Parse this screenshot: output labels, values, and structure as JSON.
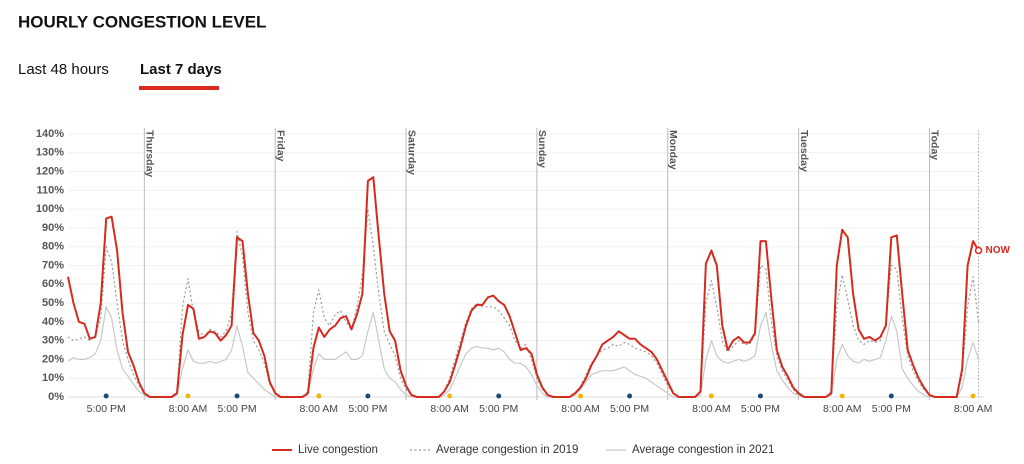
{
  "page": {
    "title": "HOURLY CONGESTION LEVEL",
    "tabs": [
      {
        "label": "Last 48 hours",
        "active": false
      },
      {
        "label": "Last 7 days",
        "active": true
      }
    ]
  },
  "chart_data": {
    "type": "line",
    "xlim": [
      0,
      168
    ],
    "xticks": [
      {
        "value": 7,
        "label": "5:00 PM",
        "dot": "#1d4a73"
      },
      {
        "value": 22,
        "label": "8:00 AM",
        "dot": "#f2b705"
      },
      {
        "value": 31,
        "label": "5:00 PM",
        "dot": "#1d4a73"
      },
      {
        "value": 46,
        "label": "8:00 AM",
        "dot": "#f2b705"
      },
      {
        "value": 55,
        "label": "5:00 PM",
        "dot": "#1d4a73"
      },
      {
        "value": 70,
        "label": "8:00 AM",
        "dot": "#f2b705"
      },
      {
        "value": 79,
        "label": "5:00 PM",
        "dot": "#1d4a73"
      },
      {
        "value": 94,
        "label": "8:00 AM",
        "dot": "#f2b705"
      },
      {
        "value": 103,
        "label": "5:00 PM",
        "dot": "#1d4a73"
      },
      {
        "value": 118,
        "label": "8:00 AM",
        "dot": "#f2b705"
      },
      {
        "value": 127,
        "label": "5:00 PM",
        "dot": "#1d4a73"
      },
      {
        "value": 142,
        "label": "8:00 AM",
        "dot": "#f2b705"
      },
      {
        "value": 151,
        "label": "5:00 PM",
        "dot": "#1d4a73"
      },
      {
        "value": 166,
        "label": "8:00 AM",
        "dot": "#f2b705"
      }
    ],
    "day_markers": [
      {
        "value": 14,
        "label": "Thursday"
      },
      {
        "value": 38,
        "label": "Friday"
      },
      {
        "value": 62,
        "label": "Saturday"
      },
      {
        "value": 86,
        "label": "Sunday"
      },
      {
        "value": 110,
        "label": "Monday"
      },
      {
        "value": 134,
        "label": "Tuesday"
      },
      {
        "value": 158,
        "label": "Today"
      }
    ],
    "ylim": [
      0,
      140
    ],
    "yticks": [
      {
        "value": 0,
        "label": "0%"
      },
      {
        "value": 10,
        "label": "10%"
      },
      {
        "value": 20,
        "label": "20%"
      },
      {
        "value": 30,
        "label": "30%"
      },
      {
        "value": 40,
        "label": "40%"
      },
      {
        "value": 50,
        "label": "50%"
      },
      {
        "value": 60,
        "label": "60%"
      },
      {
        "value": 70,
        "label": "70%"
      },
      {
        "value": 80,
        "label": "80%"
      },
      {
        "value": 90,
        "label": "90%"
      },
      {
        "value": 100,
        "label": "100%"
      },
      {
        "value": 110,
        "label": "110%"
      },
      {
        "value": 120,
        "label": "120%"
      },
      {
        "value": 130,
        "label": "130%"
      },
      {
        "value": 140,
        "label": "140%"
      }
    ],
    "grid": true,
    "annotation": {
      "label": "NOW",
      "color": "#d42b1e"
    },
    "series": [
      {
        "name": "Average congestion in 2021",
        "color": "#c8c8c8",
        "line_style": "solid",
        "values": [
          19,
          21,
          20,
          20,
          21,
          23,
          30,
          48,
          42,
          25,
          15,
          11,
          7,
          3,
          1,
          0,
          0,
          0,
          0,
          0,
          1,
          15,
          25,
          19,
          18,
          18,
          19,
          18,
          19,
          20,
          25,
          38,
          27,
          13,
          10,
          7,
          4,
          2,
          0,
          0,
          0,
          0,
          0,
          0,
          1,
          15,
          23,
          20,
          20,
          20,
          22,
          24,
          20,
          20,
          22,
          35,
          45,
          30,
          15,
          10,
          8,
          4,
          1,
          0,
          0,
          0,
          0,
          0,
          0,
          1,
          4,
          10,
          17,
          23,
          26,
          27,
          26,
          26,
          25,
          26,
          24,
          20,
          18,
          18,
          16,
          12,
          6,
          2,
          0,
          0,
          0,
          0,
          0,
          1,
          4,
          8,
          12,
          13,
          14,
          14,
          14,
          15,
          16,
          14,
          12,
          11,
          10,
          8,
          6,
          4,
          2,
          0,
          0,
          0,
          0,
          0,
          1,
          20,
          30,
          22,
          19,
          18,
          19,
          20,
          19,
          20,
          22,
          38,
          45,
          28,
          14,
          9,
          5,
          2,
          1,
          0,
          0,
          0,
          0,
          0,
          1,
          20,
          28,
          22,
          19,
          18,
          20,
          19,
          20,
          21,
          30,
          43,
          35,
          15,
          10,
          6,
          3,
          1,
          0,
          0,
          0,
          0,
          0,
          0,
          5,
          20,
          29,
          20
        ]
      },
      {
        "name": "Average congestion in 2019",
        "color": "#9a9a9a",
        "line_style": "dotted",
        "values": [
          32,
          30,
          31,
          32,
          30,
          33,
          42,
          80,
          72,
          50,
          30,
          20,
          12,
          6,
          2,
          0,
          0,
          0,
          0,
          0,
          3,
          48,
          63,
          45,
          35,
          32,
          36,
          35,
          32,
          35,
          45,
          88,
          75,
          45,
          30,
          25,
          18,
          7,
          2,
          0,
          0,
          0,
          0,
          0,
          3,
          45,
          57,
          42,
          38,
          44,
          46,
          40,
          36,
          48,
          65,
          100,
          80,
          55,
          35,
          28,
          22,
          10,
          4,
          1,
          0,
          0,
          0,
          0,
          0,
          3,
          10,
          20,
          30,
          40,
          47,
          50,
          48,
          48,
          48,
          46,
          42,
          38,
          30,
          26,
          28,
          20,
          10,
          4,
          1,
          0,
          0,
          0,
          0,
          2,
          6,
          12,
          18,
          22,
          25,
          26,
          28,
          27,
          29,
          28,
          26,
          25,
          24,
          22,
          18,
          12,
          6,
          2,
          0,
          0,
          0,
          0,
          3,
          50,
          62,
          48,
          30,
          24,
          27,
          30,
          28,
          28,
          33,
          70,
          68,
          40,
          22,
          14,
          9,
          4,
          1,
          0,
          0,
          0,
          0,
          0,
          3,
          48,
          65,
          52,
          38,
          30,
          28,
          30,
          29,
          30,
          40,
          70,
          68,
          42,
          22,
          14,
          8,
          4,
          1,
          0,
          0,
          0,
          0,
          0,
          12,
          48,
          64,
          40
        ]
      },
      {
        "name": "Live congestion",
        "color": "#d42b1e",
        "line_style": "solid",
        "values": [
          64,
          50,
          40,
          39,
          31,
          32,
          50,
          95,
          96,
          78,
          45,
          24,
          17,
          8,
          2,
          0,
          0,
          0,
          0,
          0,
          2,
          33,
          49,
          47,
          31,
          32,
          35,
          34,
          30,
          33,
          38,
          85,
          83,
          55,
          34,
          30,
          22,
          8,
          2,
          0,
          0,
          0,
          0,
          0,
          2,
          26,
          37,
          32,
          36,
          38,
          42,
          43,
          36,
          44,
          55,
          115,
          117,
          85,
          55,
          35,
          30,
          14,
          6,
          1,
          0,
          0,
          0,
          0,
          0,
          3,
          8,
          17,
          27,
          38,
          46,
          49,
          49,
          53,
          54,
          51,
          49,
          43,
          34,
          25,
          26,
          23,
          12,
          5,
          1,
          0,
          0,
          0,
          0,
          2,
          5,
          10,
          17,
          22,
          28,
          30,
          32,
          35,
          33,
          31,
          31,
          28,
          26,
          24,
          20,
          14,
          8,
          2,
          0,
          0,
          0,
          0,
          3,
          71,
          78,
          70,
          38,
          25,
          30,
          32,
          29,
          29,
          34,
          83,
          83,
          52,
          25,
          16,
          11,
          5,
          2,
          0,
          0,
          0,
          0,
          0,
          2,
          70,
          89,
          85,
          55,
          36,
          31,
          32,
          30,
          32,
          38,
          85,
          86,
          55,
          25,
          17,
          10,
          5,
          1,
          0,
          0,
          0,
          0,
          0,
          15,
          70,
          83,
          78
        ]
      }
    ],
    "legend_order": [
      2,
      1,
      0
    ]
  }
}
